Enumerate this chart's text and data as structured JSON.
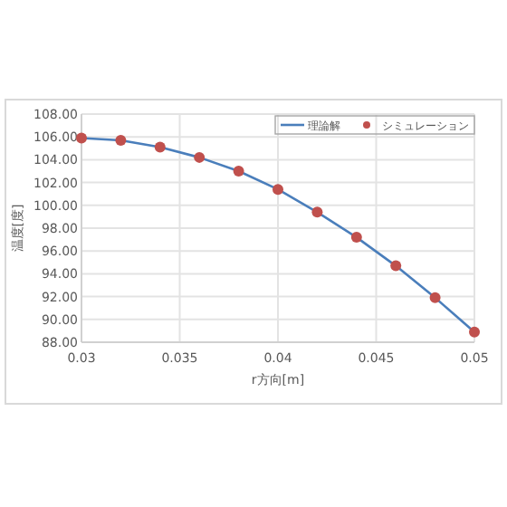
{
  "chart_data": {
    "type": "line",
    "xlabel": "r方向[m]",
    "ylabel": "温度[度]",
    "x": [
      0.03,
      0.032,
      0.034,
      0.036,
      0.038,
      0.04,
      0.042,
      0.044,
      0.046,
      0.048,
      0.05
    ],
    "series": [
      {
        "name": "理論解",
        "color": "#4a7ebb",
        "values": [
          105.9,
          105.7,
          105.1,
          104.2,
          103.0,
          101.4,
          99.4,
          97.2,
          94.7,
          91.9,
          88.9
        ]
      },
      {
        "name": "シミュレーション",
        "type": "scatter",
        "color": "#c0504d",
        "marker": "circle",
        "values": [
          105.9,
          105.7,
          105.1,
          104.2,
          103.0,
          101.4,
          99.4,
          97.2,
          94.7,
          91.9,
          88.9
        ]
      }
    ],
    "xlim": [
      0.03,
      0.05
    ],
    "xticks": [
      0.03,
      0.035,
      0.04,
      0.045,
      0.05
    ],
    "ylim": [
      88,
      108
    ],
    "yticks": [
      {
        "value": 88,
        "label": "88.00"
      },
      {
        "value": 90,
        "label": "90.00"
      },
      {
        "value": 92,
        "label": "92.00"
      },
      {
        "value": 94,
        "label": "94.00"
      },
      {
        "value": 96,
        "label": "96.00"
      },
      {
        "value": 98,
        "label": "98.00"
      },
      {
        "value": 100,
        "label": "100.00"
      },
      {
        "value": 102,
        "label": "102.00"
      },
      {
        "value": 104,
        "label": "104.00"
      },
      {
        "value": 106,
        "label": "106.00"
      },
      {
        "value": 108,
        "label": "108.00"
      }
    ],
    "grid": true,
    "legend": "top right"
  }
}
